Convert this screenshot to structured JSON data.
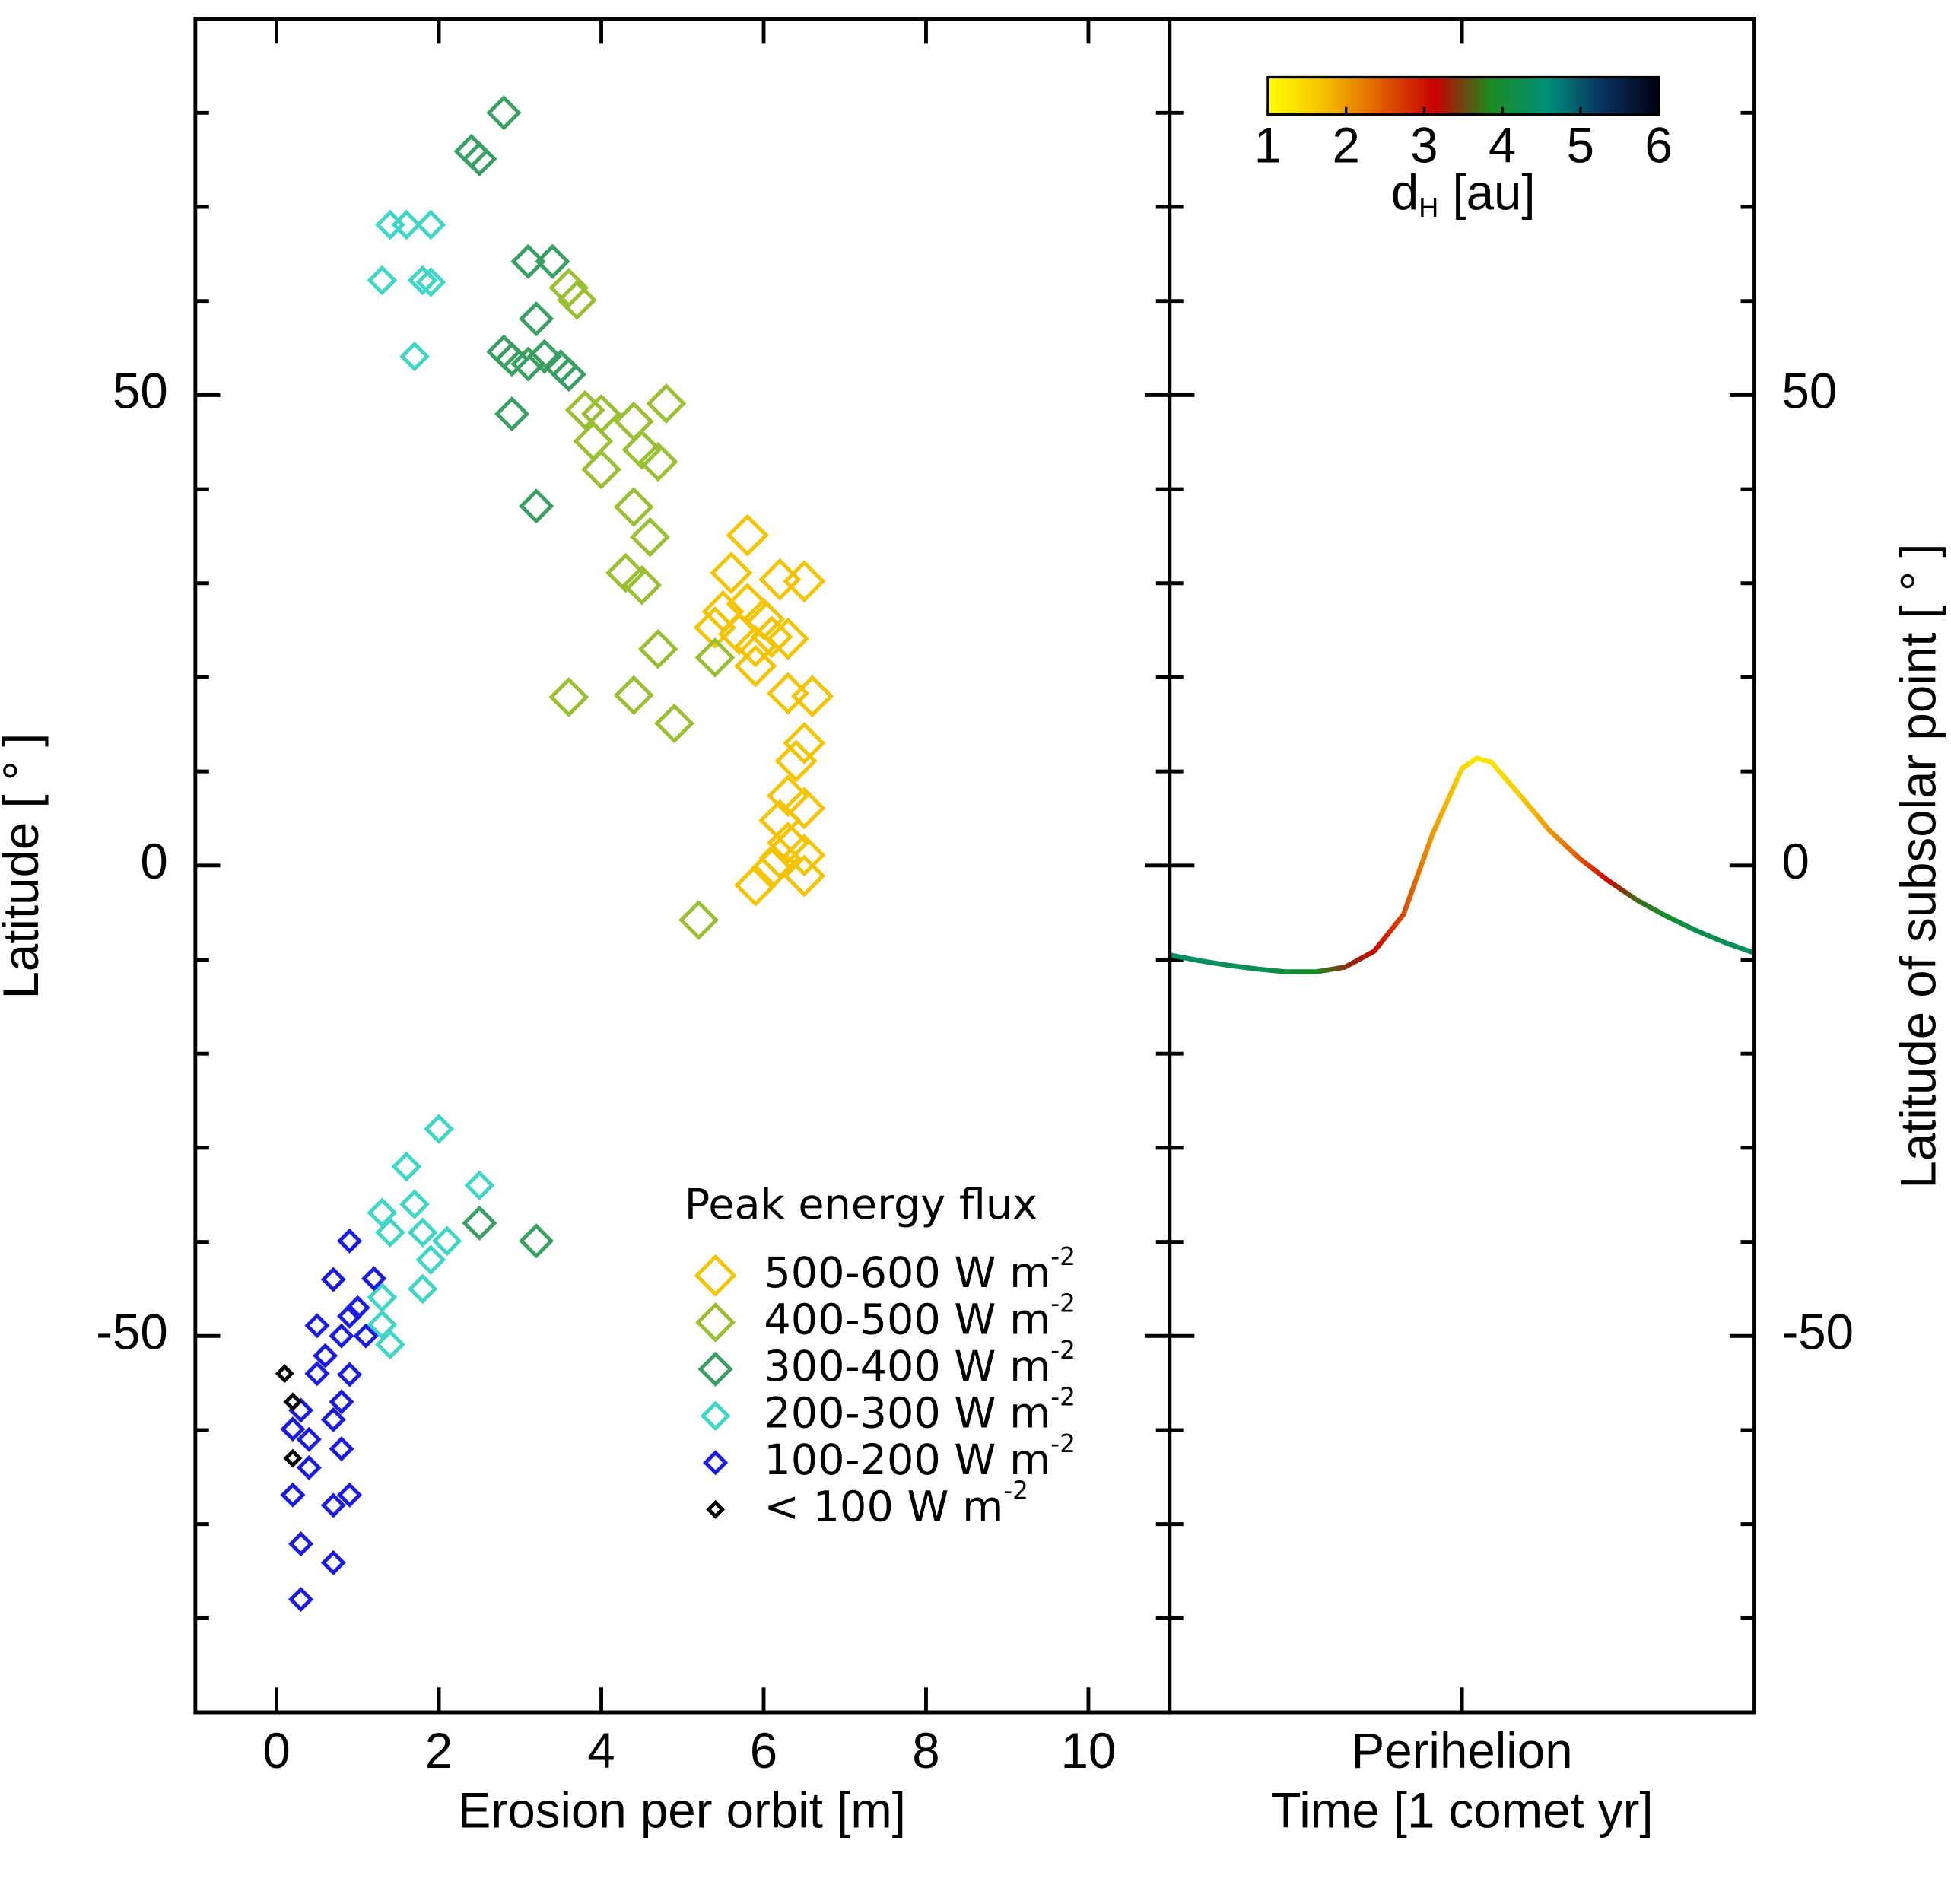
{
  "chart_data": [
    {
      "type": "scatter",
      "xlabel": "Erosion per orbit [m]",
      "ylabel": "Latitude [ ° ]",
      "xlim": [
        -1,
        11
      ],
      "xticks": [
        0,
        2,
        4,
        6,
        8,
        10
      ],
      "ylim": [
        -90,
        90
      ],
      "yticks": [
        -50,
        0,
        50
      ],
      "yticks_minor": [
        -80,
        -70,
        -60,
        -40,
        -30,
        -20,
        -10,
        10,
        20,
        30,
        40,
        60,
        70,
        80
      ],
      "legend": "lower right",
      "legend_title": "Peak energy flux",
      "series": [
        {
          "name": "500-600 W m",
          "unit_sup": "-2",
          "color": "#f5c400",
          "marker_size": 15,
          "x": [
            5.8,
            5.6,
            6.2,
            6.5,
            5.5,
            5.8,
            6.0,
            5.4,
            5.7,
            6.1,
            5.9,
            6.3,
            5.9,
            6.3,
            6.6,
            6.5,
            6.4,
            6.3,
            6.5,
            6.2,
            6.3,
            6.2,
            6.5,
            5.9,
            6.1,
            6.5
          ],
          "values": [
            35.1,
            31.1,
            30.4,
            30.2,
            27.0,
            27.8,
            26.2,
            25.3,
            24.6,
            24.3,
            23.3,
            24.1,
            21.2,
            18.3,
            18.0,
            13.0,
            11.1,
            7.4,
            6.1,
            4.8,
            2.4,
            0.8,
            1.1,
            -2.1,
            -0.3,
            -1.1
          ]
        },
        {
          "name": "400-500 W m",
          "unit_sup": "-2",
          "color": "#98c032",
          "marker_size": 14,
          "x": [
            3.6,
            3.7,
            3.8,
            4.0,
            3.9,
            4.4,
            4.8,
            4.0,
            4.5,
            4.7,
            4.4,
            4.6,
            4.3,
            4.5,
            4.7,
            5.4,
            3.6,
            4.4,
            4.9,
            5.2
          ],
          "values": [
            61.4,
            60.1,
            48.4,
            48.0,
            45.1,
            47.2,
            49.1,
            42.1,
            44.2,
            42.9,
            38.1,
            34.9,
            31.1,
            29.8,
            23.0,
            22.1,
            17.9,
            18.1,
            15.1,
            -5.8
          ]
        },
        {
          "name": "300-400 W m",
          "unit_sup": "-2",
          "color": "#3a9f62",
          "marker_size": 12,
          "x": [
            2.8,
            2.4,
            2.5,
            3.1,
            3.4,
            3.2,
            2.8,
            2.9,
            3.1,
            3.3,
            3.5,
            3.6,
            2.9,
            3.2,
            2.5,
            3.2
          ],
          "values": [
            80.0,
            75.9,
            75.1,
            64.2,
            64.2,
            58.1,
            54.6,
            53.8,
            53.3,
            54.1,
            53.0,
            52.2,
            48.0,
            38.2,
            -38.0,
            -39.9
          ]
        },
        {
          "name": "200-300 W m",
          "unit_sup": "-2",
          "color": "#3fd6c8",
          "marker_size": 10,
          "x": [
            1.4,
            1.6,
            1.9,
            1.3,
            1.8,
            1.9,
            1.7,
            2.0,
            1.6,
            2.5,
            1.3,
            1.7,
            1.4,
            1.8,
            2.1,
            1.9,
            1.8,
            1.3,
            1.3,
            1.4
          ],
          "values": [
            68.1,
            68.1,
            68.1,
            62.2,
            62.2,
            62.0,
            54.1,
            -28.0,
            -32.0,
            -34.0,
            -36.9,
            -36.0,
            -39.0,
            -39.0,
            -39.9,
            -41.9,
            -45.0,
            -45.9,
            -48.8,
            -50.9
          ]
        },
        {
          "name": "100-200 W m",
          "unit_sup": "-2",
          "color": "#1c1ce0",
          "marker_size": 8,
          "x": [
            0.9,
            0.7,
            1.2,
            0.5,
            0.9,
            1.0,
            0.8,
            1.1,
            0.6,
            0.5,
            0.9,
            0.7,
            0.8,
            0.3,
            0.2,
            0.4,
            0.8,
            0.4,
            0.2,
            0.7,
            0.9,
            0.3,
            0.7,
            0.3
          ],
          "values": [
            -39.9,
            -44.0,
            -43.9,
            -48.9,
            -47.9,
            -47.0,
            -50.0,
            -50.0,
            -52.1,
            -54.0,
            -54.1,
            -58.9,
            -57.0,
            -57.9,
            -59.9,
            -61.0,
            -62.0,
            -64.0,
            -66.9,
            -68.0,
            -66.9,
            -72.1,
            -74.1,
            -78.0
          ]
        },
        {
          "name": "< 100 W m",
          "unit_sup": "-2",
          "color": "#000000",
          "marker_size": 5.5,
          "x": [
            0.1,
            0.2,
            0.2
          ],
          "values": [
            -54.0,
            -57.0,
            -63.0
          ]
        }
      ]
    },
    {
      "type": "line",
      "xlabel": "Time [1 comet yr]",
      "ylabel": "Latitude of subsolar point [ ° ]",
      "xlim": [
        -0.5,
        0.5
      ],
      "xticks": [
        {
          "value": 0,
          "label": "Perihelion"
        }
      ],
      "ylim": [
        -90,
        90
      ],
      "yticks": [
        -50,
        0,
        50
      ],
      "yticks_minor": [
        -80,
        -70,
        -60,
        -40,
        -30,
        -20,
        -10,
        10,
        20,
        30,
        40,
        60,
        70,
        80
      ],
      "x": [
        -0.5,
        -0.45,
        -0.4,
        -0.35,
        -0.3,
        -0.25,
        -0.2,
        -0.15,
        -0.1,
        -0.05,
        0,
        0.025,
        0.05,
        0.1,
        0.15,
        0.2,
        0.25,
        0.3,
        0.35,
        0.4,
        0.45,
        0.5
      ],
      "values": [
        -9.5,
        -10.1,
        -10.6,
        -11.0,
        -11.3,
        -11.3,
        -10.8,
        -9.1,
        -5.2,
        3.4,
        10.3,
        11.4,
        11.0,
        7.4,
        3.7,
        0.8,
        -1.6,
        -3.7,
        -5.4,
        -6.9,
        -8.2,
        -9.3
      ],
      "color_values": [
        4.4,
        4.4,
        4.3,
        4.3,
        4.1,
        3.9,
        3.4,
        3.1,
        2.6,
        2.0,
        1.5,
        1.3,
        1.3,
        1.6,
        2.0,
        2.5,
        3.1,
        3.7,
        4.0,
        4.2,
        4.3,
        4.4
      ],
      "colorbar": {
        "label": "d",
        "label_sub": "H",
        "label_unit": " [au]",
        "lim": [
          1,
          6
        ],
        "ticks": [
          1,
          2,
          3,
          4,
          5,
          6
        ],
        "colors": [
          "#ffff00",
          "#f5c000",
          "#e06000",
          "#c80000",
          "#1a8c20",
          "#00907a",
          "#0a3060",
          "#000010"
        ]
      }
    }
  ]
}
